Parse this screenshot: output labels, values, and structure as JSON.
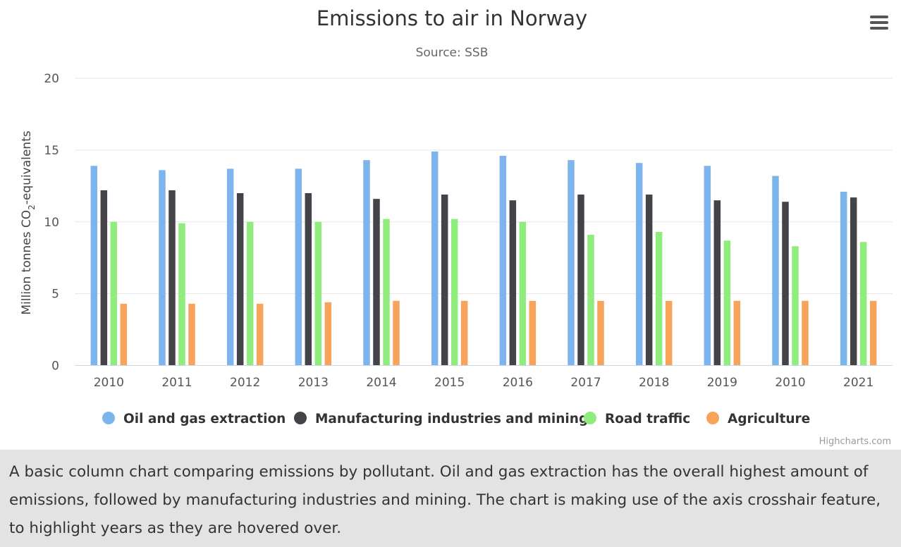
{
  "chart_data": {
    "type": "bar",
    "title": "Emissions to air in Norway",
    "subtitle": "Source: SSB",
    "ylabel_main": "Million tonnes CO",
    "ylabel_sub": "2",
    "ylabel_tail": "-equivalents",
    "ylim": [
      0,
      20
    ],
    "yticks": [
      "0",
      "5",
      "10",
      "15",
      "20"
    ],
    "grid": true,
    "legend_position": "bottom",
    "categories": [
      "2010",
      "2011",
      "2012",
      "2013",
      "2014",
      "2015",
      "2016",
      "2017",
      "2018",
      "2019",
      "2010",
      "2021"
    ],
    "series": [
      {
        "name": "Oil and gas extraction",
        "color": "#7cb5ec",
        "values": [
          13.9,
          13.6,
          13.7,
          13.7,
          14.3,
          14.9,
          14.6,
          14.3,
          14.1,
          13.9,
          13.2,
          12.1
        ]
      },
      {
        "name": "Manufacturing industries and mining",
        "color": "#434348",
        "values": [
          12.2,
          12.2,
          12.0,
          12.0,
          11.6,
          11.9,
          11.5,
          11.9,
          11.9,
          11.5,
          11.4,
          11.7
        ]
      },
      {
        "name": "Road traffic",
        "color": "#90ed7d",
        "values": [
          10.0,
          9.9,
          10.0,
          10.0,
          10.2,
          10.2,
          10.0,
          9.1,
          9.3,
          8.7,
          8.3,
          8.6
        ]
      },
      {
        "name": "Agriculture",
        "color": "#f7a35c",
        "values": [
          4.3,
          4.3,
          4.3,
          4.4,
          4.5,
          4.5,
          4.5,
          4.5,
          4.5,
          4.5,
          4.5,
          4.5
        ]
      }
    ]
  },
  "menu": {
    "icon": "hamburger-menu-icon"
  },
  "credits": "Highcharts.com",
  "caption": "A basic column chart comparing emissions by pollutant. Oil and gas extraction has the overall highest amount of emissions, followed by manufacturing industries and mining. The chart is making use of the axis crosshair feature, to highlight years as they are hovered over."
}
